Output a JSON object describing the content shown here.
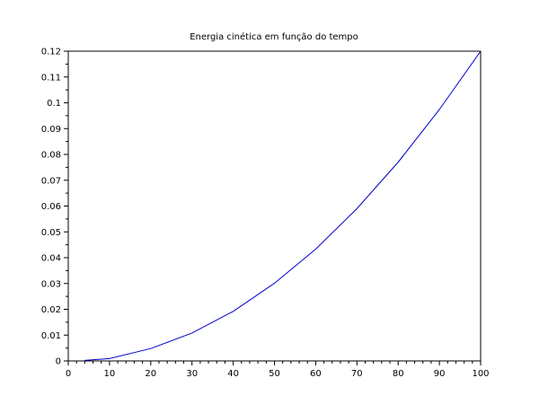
{
  "chart_data": {
    "type": "line",
    "title": "Energia cinética em função do tempo",
    "xlabel": "",
    "ylabel": "",
    "xlim": [
      0,
      100
    ],
    "ylim": [
      0,
      0.12
    ],
    "x_ticks": [
      "0",
      "10",
      "20",
      "30",
      "40",
      "50",
      "60",
      "70",
      "80",
      "90",
      "100"
    ],
    "y_ticks": [
      "0",
      "0.01",
      "0.02",
      "0.03",
      "0.04",
      "0.05",
      "0.06",
      "0.07",
      "0.08",
      "0.09",
      "0.1",
      "0.11",
      "0.12"
    ],
    "grid": false,
    "legend": "none",
    "series": [
      {
        "color": "#0000cc",
        "x": [
          4,
          10,
          20,
          30,
          40,
          50,
          60,
          70,
          80,
          90,
          100
        ],
        "y": [
          0.0002,
          0.0009,
          0.0048,
          0.0108,
          0.0192,
          0.0301,
          0.0433,
          0.059,
          0.077,
          0.0974,
          0.12
        ]
      }
    ]
  },
  "colors": {
    "axis": "#000000",
    "background": "#ffffff",
    "line": "#0000cc"
  }
}
